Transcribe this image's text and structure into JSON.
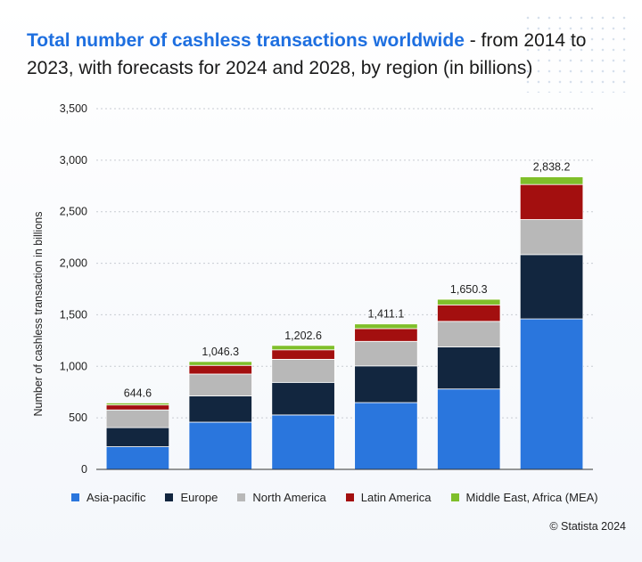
{
  "title": {
    "highlight": "Total number of cashless transactions worldwide",
    "rest": " - from 2014 to 2023, with forecasts for 2024 and 2028, by region (in billions)"
  },
  "credit": "© Statista 2024",
  "chart_data": {
    "type": "bar",
    "stacked": true,
    "categories": [
      "",
      "",
      "",
      "",
      "",
      ""
    ],
    "ylabel": "Number of cashless transaction in billions",
    "ylim": [
      0,
      3500
    ],
    "yticks": [
      0,
      500,
      1000,
      1500,
      2000,
      2500,
      3000,
      3500
    ],
    "ytick_labels": [
      "0",
      "500",
      "1,000",
      "1,500",
      "2,000",
      "2,500",
      "3,000",
      "3,500"
    ],
    "grid": true,
    "legend_position": "bottom",
    "totals": [
      644.6,
      1046.3,
      1202.6,
      1411.1,
      1650.3,
      2838.2
    ],
    "total_labels": [
      "644.6",
      "1,046.3",
      "1,202.6",
      "1,411.1",
      "1,650.3",
      "2,838.2"
    ],
    "series": [
      {
        "name": "Asia-pacific",
        "color": "#2a76dd",
        "values": [
          220,
          458,
          528,
          648,
          780,
          1460
        ]
      },
      {
        "name": "Europe",
        "color": "#12263f",
        "values": [
          185,
          255,
          316,
          356,
          408,
          624
        ]
      },
      {
        "name": "North America",
        "color": "#b8b8b8",
        "values": [
          172,
          212,
          224,
          238,
          248,
          340
        ]
      },
      {
        "name": "Latin America",
        "color": "#a30f0f",
        "values": [
          48,
          84,
          92,
          124,
          160,
          340
        ]
      },
      {
        "name": "Middle East, Africa (MEA)",
        "color": "#7fbf2a",
        "values": [
          19.6,
          37.3,
          42.6,
          45.1,
          54.3,
          74.2
        ]
      }
    ]
  }
}
